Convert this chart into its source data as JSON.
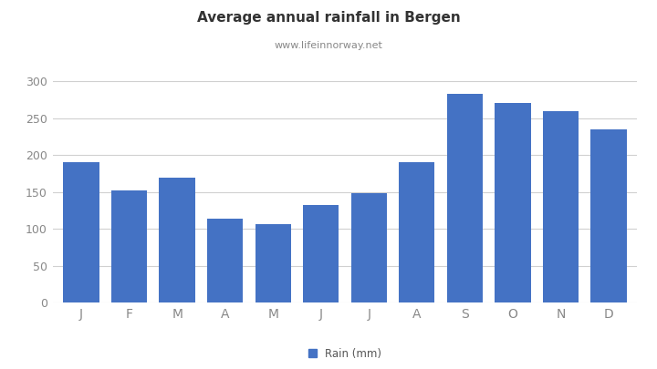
{
  "title": "Average annual rainfall in Bergen",
  "subtitle": "www.lifeinnorway.net",
  "months": [
    "J",
    "F",
    "M",
    "A",
    "M",
    "J",
    "J",
    "A",
    "S",
    "O",
    "N",
    "D"
  ],
  "values": [
    190,
    152,
    169,
    114,
    106,
    132,
    148,
    190,
    283,
    271,
    259,
    235
  ],
  "bar_color": "#4472C4",
  "ylim": [
    0,
    300
  ],
  "yticks": [
    0,
    50,
    100,
    150,
    200,
    250,
    300
  ],
  "background_color": "#ffffff",
  "title_fontsize": 11,
  "subtitle_fontsize": 8,
  "legend_label": "Rain (mm)",
  "tick_color": "#888888",
  "grid_color": "#d0d0d0"
}
